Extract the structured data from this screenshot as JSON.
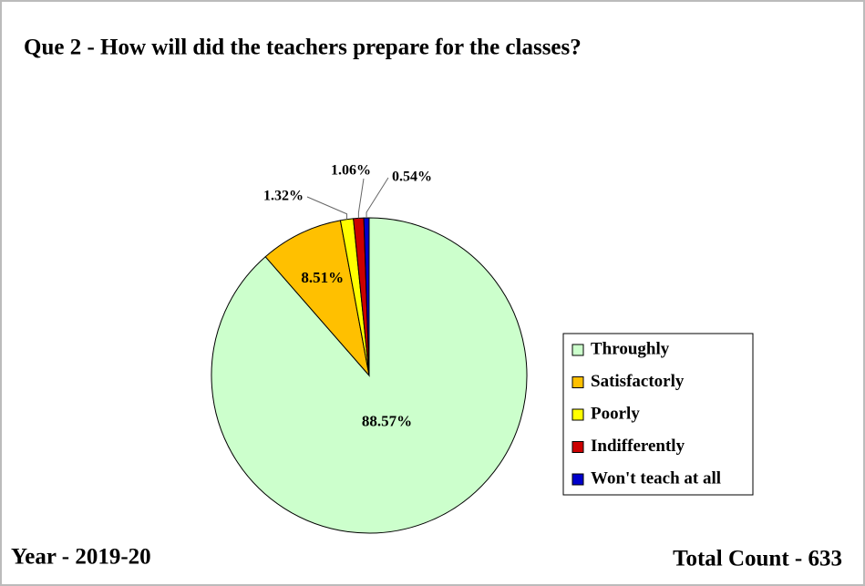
{
  "chart_data": {
    "type": "pie",
    "title": "Que 2 - How will did the teachers prepare for the classes?",
    "categories": [
      "Throughly",
      "Satisfactorly",
      "Poorly",
      "Indifferently",
      "Won't teach at all"
    ],
    "values": [
      88.57,
      8.51,
      1.32,
      1.06,
      0.54
    ],
    "value_labels": [
      "88.57%",
      "8.51%",
      "1.32%",
      "1.06%",
      "0.54%"
    ],
    "colors": [
      "#ccffcc",
      "#ffc000",
      "#ffff00",
      "#cc0000",
      "#0000cc"
    ],
    "legend": "right",
    "footer_left": "Year - 2019-20",
    "footer_right": "Total Count - 633"
  }
}
